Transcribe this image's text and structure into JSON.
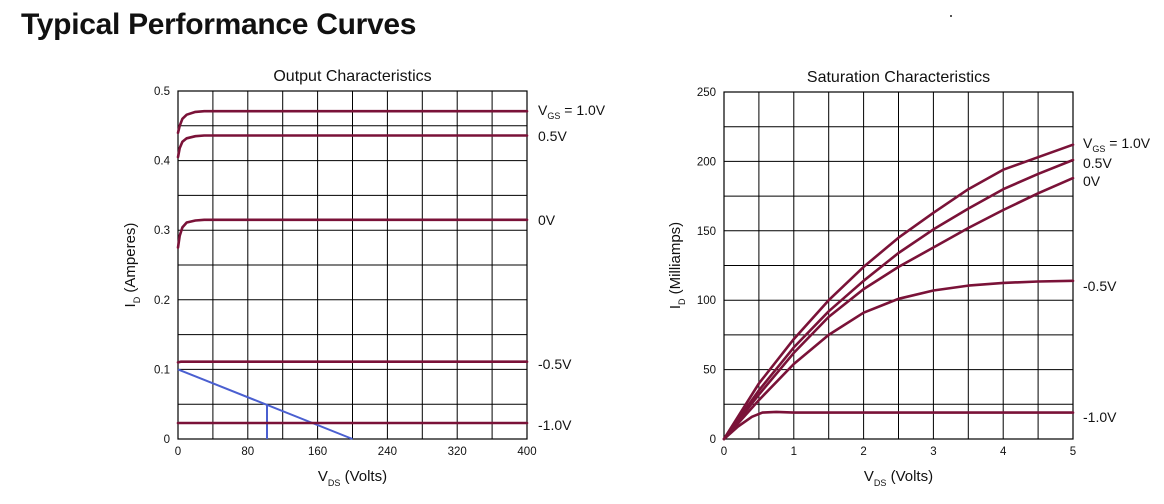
{
  "page": {
    "title": "Typical Performance Curves"
  },
  "colors": {
    "curve": "#7a1238",
    "load_line": "#4a5fd0",
    "grid": "#000000"
  },
  "chart_data": [
    {
      "type": "line",
      "title": "Output Characteristics",
      "xlabel_main": "V",
      "xlabel_sub": "DS",
      "xlabel_rest": " (Volts)",
      "ylabel_main": "I",
      "ylabel_sub": "D",
      "ylabel_rest": " (Amperes)",
      "xlim": [
        0,
        400
      ],
      "ylim": [
        0,
        0.5
      ],
      "x_ticks": [
        0,
        80,
        160,
        240,
        320,
        400
      ],
      "y_ticks": [
        0,
        0.1,
        0.2,
        0.3,
        0.4,
        0.5
      ],
      "x_tick_labels": [
        "0",
        "80",
        "160",
        "240",
        "320",
        "400"
      ],
      "y_tick_labels": [
        "0",
        "0.1",
        "0.2",
        "0.3",
        "0.4",
        "0.5"
      ],
      "x_grid": [
        0,
        40,
        80,
        120,
        160,
        200,
        240,
        280,
        320,
        360,
        400
      ],
      "y_grid": [
        0,
        0.05,
        0.1,
        0.15,
        0.2,
        0.25,
        0.3,
        0.35,
        0.4,
        0.45,
        0.5
      ],
      "grid": true,
      "series": [
        {
          "name": "V_GS = 1.0V",
          "label_main": "V",
          "label_sub": "GS",
          "label_rest": " = 1.0V",
          "points": [
            [
              0,
              0.44
            ],
            [
              2,
              0.45
            ],
            [
              5,
              0.46
            ],
            [
              10,
              0.466
            ],
            [
              20,
              0.47
            ],
            [
              30,
              0.471
            ],
            [
              400,
              0.471
            ]
          ]
        },
        {
          "name": "0.5V",
          "label_main": "0.5V",
          "label_sub": "",
          "label_rest": "",
          "points": [
            [
              0,
              0.405
            ],
            [
              2,
              0.418
            ],
            [
              5,
              0.427
            ],
            [
              10,
              0.432
            ],
            [
              20,
              0.435
            ],
            [
              30,
              0.436
            ],
            [
              400,
              0.436
            ]
          ]
        },
        {
          "name": "0V",
          "label_main": "0V",
          "label_sub": "",
          "label_rest": "",
          "points": [
            [
              0,
              0.275
            ],
            [
              2,
              0.292
            ],
            [
              5,
              0.304
            ],
            [
              10,
              0.311
            ],
            [
              20,
              0.314
            ],
            [
              30,
              0.315
            ],
            [
              400,
              0.315
            ]
          ]
        },
        {
          "name": "-0.5V",
          "label_main": "-0.5V",
          "label_sub": "",
          "label_rest": "",
          "points": [
            [
              0,
              0.11
            ],
            [
              3,
              0.111
            ],
            [
              400,
              0.111
            ]
          ]
        },
        {
          "name": "-1.0V",
          "label_main": "-1.0V",
          "label_sub": "",
          "label_rest": "",
          "points": [
            [
              0,
              0.023
            ],
            [
              3,
              0.023
            ],
            [
              400,
              0.023
            ]
          ]
        }
      ],
      "load_line": {
        "line": [
          [
            0,
            0.1
          ],
          [
            200,
            0
          ]
        ],
        "drop": [
          [
            102,
            0
          ],
          [
            102,
            0.049
          ]
        ],
        "hline": [
          [
            102,
            0.049
          ],
          [
            103,
            0.049
          ]
        ]
      }
    },
    {
      "type": "line",
      "title": "Saturation Characteristics",
      "xlabel_main": "V",
      "xlabel_sub": "DS",
      "xlabel_rest": " (Volts)",
      "ylabel_main": "I",
      "ylabel_sub": "D",
      "ylabel_rest": " (Milliamps)",
      "xlim": [
        0,
        5
      ],
      "ylim": [
        0,
        250
      ],
      "x_ticks": [
        0,
        1,
        2,
        3,
        4,
        5
      ],
      "y_ticks": [
        0,
        50,
        100,
        150,
        200,
        250
      ],
      "x_tick_labels": [
        "0",
        "1",
        "2",
        "3",
        "4",
        "5"
      ],
      "y_tick_labels": [
        "0",
        "50",
        "100",
        "150",
        "200",
        "250"
      ],
      "x_grid": [
        0,
        0.5,
        1,
        1.5,
        2,
        2.5,
        3,
        3.5,
        4,
        4.5,
        5
      ],
      "y_grid": [
        0,
        25,
        50,
        75,
        100,
        125,
        150,
        175,
        200,
        225,
        250
      ],
      "grid": true,
      "series": [
        {
          "name": "V_GS = 1.0V",
          "label_main": "V",
          "label_sub": "GS",
          "label_rest": " = 1.0V",
          "points": [
            [
              0,
              0
            ],
            [
              0.5,
              40
            ],
            [
              1,
              72
            ],
            [
              1.5,
              100
            ],
            [
              2,
              124
            ],
            [
              2.5,
              145
            ],
            [
              3,
              163
            ],
            [
              3.5,
              180
            ],
            [
              4,
              194
            ],
            [
              4.5,
              203
            ],
            [
              5,
              212
            ]
          ]
        },
        {
          "name": "0.5V",
          "label_main": "0.5V",
          "label_sub": "",
          "label_rest": "",
          "points": [
            [
              0,
              0
            ],
            [
              0.5,
              35
            ],
            [
              1,
              66
            ],
            [
              1.5,
              92
            ],
            [
              2,
              114
            ],
            [
              2.5,
              134
            ],
            [
              3,
              151
            ],
            [
              3.5,
              166
            ],
            [
              4,
              180
            ],
            [
              4.5,
              191
            ],
            [
              5,
              201
            ]
          ]
        },
        {
          "name": "0V",
          "label_main": "0V",
          "label_sub": "",
          "label_rest": "",
          "points": [
            [
              0,
              0
            ],
            [
              0.5,
              32
            ],
            [
              1,
              62
            ],
            [
              1.5,
              88
            ],
            [
              2,
              108
            ],
            [
              2.5,
              124
            ],
            [
              3,
              138
            ],
            [
              3.5,
              152
            ],
            [
              4,
              165
            ],
            [
              4.5,
              177
            ],
            [
              5,
              188
            ]
          ]
        },
        {
          "name": "-0.5V",
          "label_main": "-0.5V",
          "label_sub": "",
          "label_rest": "",
          "points": [
            [
              0,
              0
            ],
            [
              0.5,
              28
            ],
            [
              1,
              54
            ],
            [
              1.5,
              75
            ],
            [
              2,
              91
            ],
            [
              2.5,
              101
            ],
            [
              3,
              107
            ],
            [
              3.5,
              110.5
            ],
            [
              4,
              112.5
            ],
            [
              4.5,
              113.5
            ],
            [
              5,
              114
            ]
          ]
        },
        {
          "name": "-1.0V",
          "label_main": "-1.0V",
          "label_sub": "",
          "label_rest": "",
          "points": [
            [
              0,
              0
            ],
            [
              0.2,
              9
            ],
            [
              0.4,
              16
            ],
            [
              0.55,
              19
            ],
            [
              0.75,
              19.5
            ],
            [
              1,
              19
            ],
            [
              5,
              19
            ]
          ]
        }
      ]
    }
  ]
}
